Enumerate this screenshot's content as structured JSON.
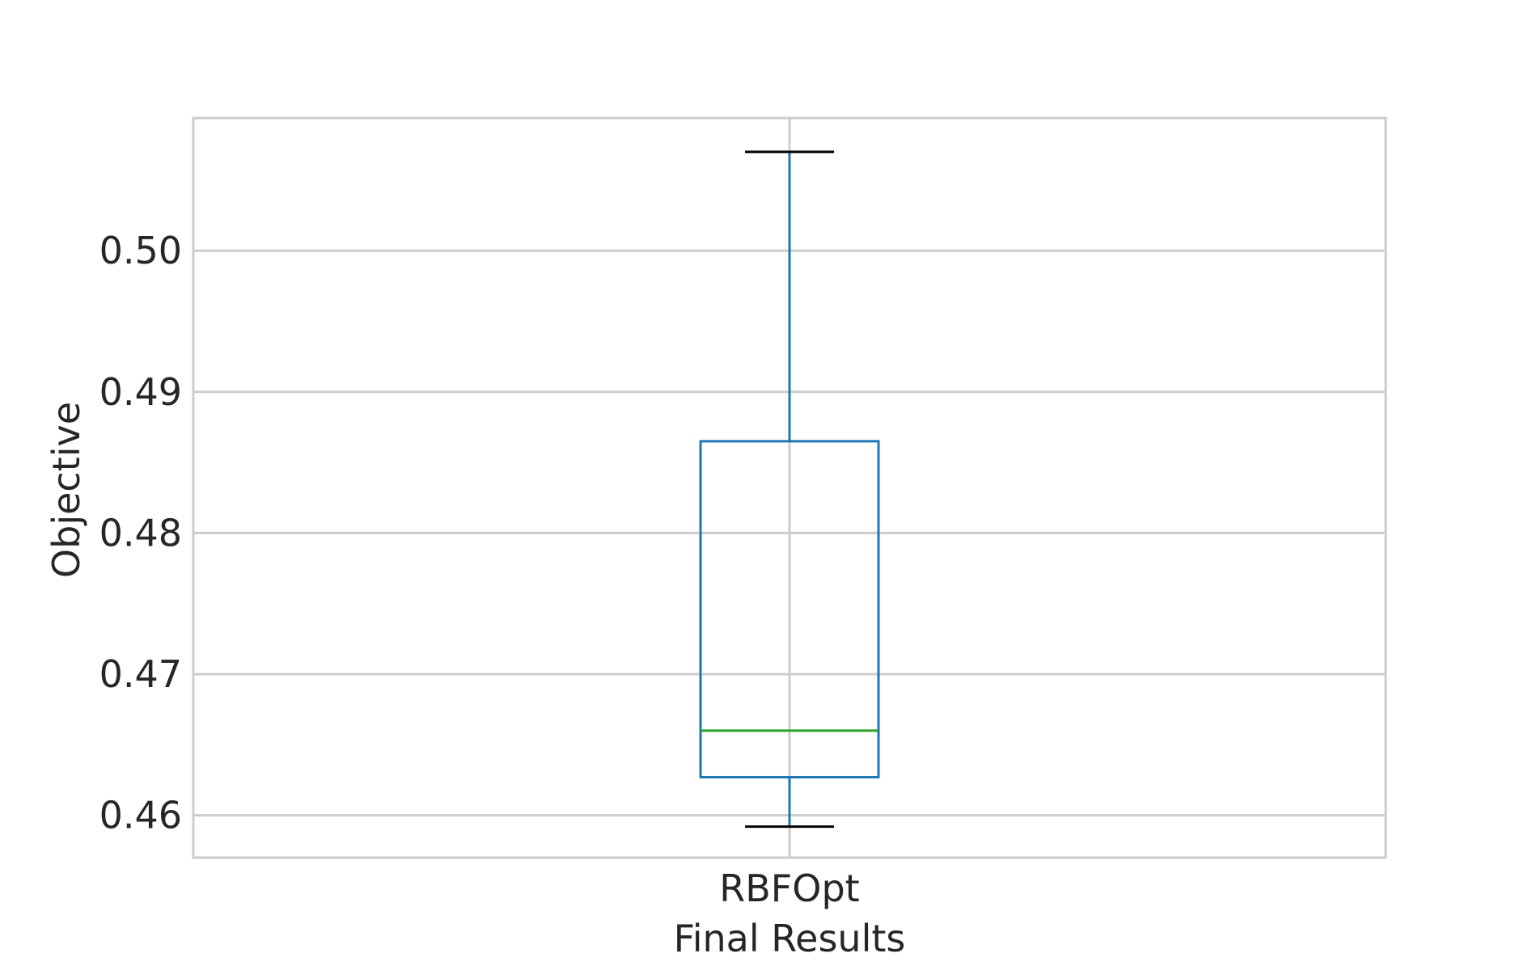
{
  "chart_data": {
    "type": "box",
    "title": "",
    "xlabel": "Final Results",
    "ylabel": "Objective",
    "categories": [
      "RBFOpt"
    ],
    "boxes": [
      {
        "category": "RBFOpt",
        "whisker_low": 0.4592,
        "q1": 0.4627,
        "median": 0.466,
        "q3": 0.4865,
        "whisker_high": 0.507
      }
    ],
    "y_ticks": [
      0.46,
      0.47,
      0.48,
      0.49,
      0.5
    ],
    "y_tick_labels": [
      "0.46",
      "0.47",
      "0.48",
      "0.49",
      "0.50"
    ],
    "ylim": [
      0.457,
      0.5094
    ],
    "grid": true,
    "colors": {
      "box": "#1f77b4",
      "median": "#2ca02c",
      "caps": "#000000",
      "grid": "#cccccc",
      "text": "#262626"
    }
  }
}
